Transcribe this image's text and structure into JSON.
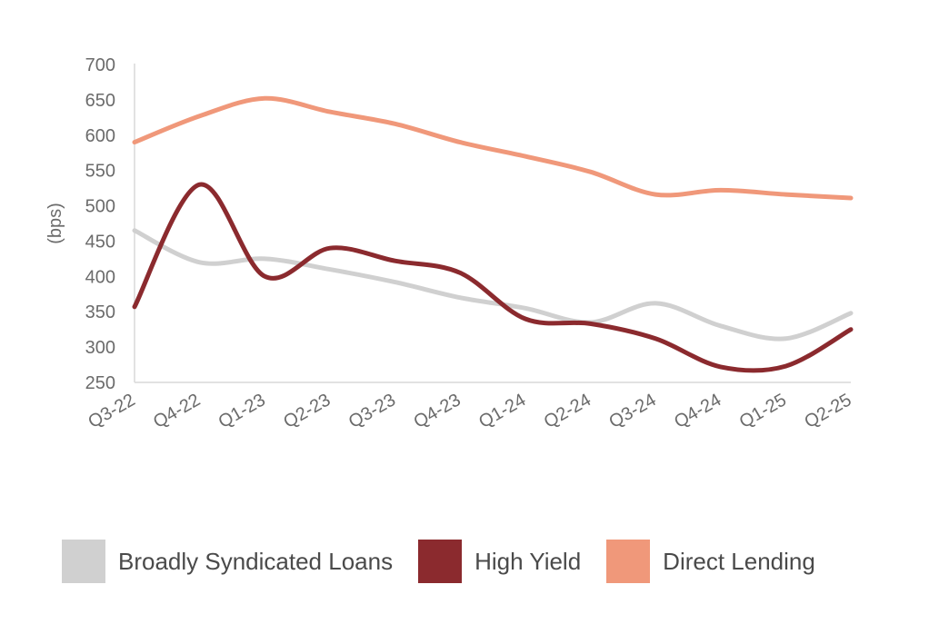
{
  "chart_data": {
    "type": "line",
    "title": "",
    "xlabel": "",
    "ylabel": "(bps)",
    "ylim": [
      250,
      700
    ],
    "yticks": [
      250,
      300,
      350,
      400,
      450,
      500,
      550,
      600,
      650,
      700
    ],
    "categories": [
      "Q3-22",
      "Q4-22",
      "Q1-23",
      "Q2-23",
      "Q3-23",
      "Q4-23",
      "Q1-24",
      "Q2-24",
      "Q3-24",
      "Q4-24",
      "Q1-25",
      "Q2-25"
    ],
    "grid": false,
    "legend_position": "bottom",
    "series": [
      {
        "name": "Broadly Syndicated Loans",
        "color": "#d0d0d0",
        "values": [
          465,
          420,
          425,
          410,
          392,
          370,
          355,
          335,
          362,
          330,
          312,
          348
        ]
      },
      {
        "name": "High Yield",
        "color": "#8b2a2e",
        "values": [
          357,
          530,
          400,
          440,
          422,
          405,
          340,
          333,
          312,
          272,
          273,
          325
        ]
      },
      {
        "name": "Direct Lending",
        "color": "#f0987a",
        "values": [
          590,
          627,
          652,
          633,
          616,
          590,
          570,
          548,
          516,
          522,
          516,
          511
        ]
      }
    ]
  }
}
